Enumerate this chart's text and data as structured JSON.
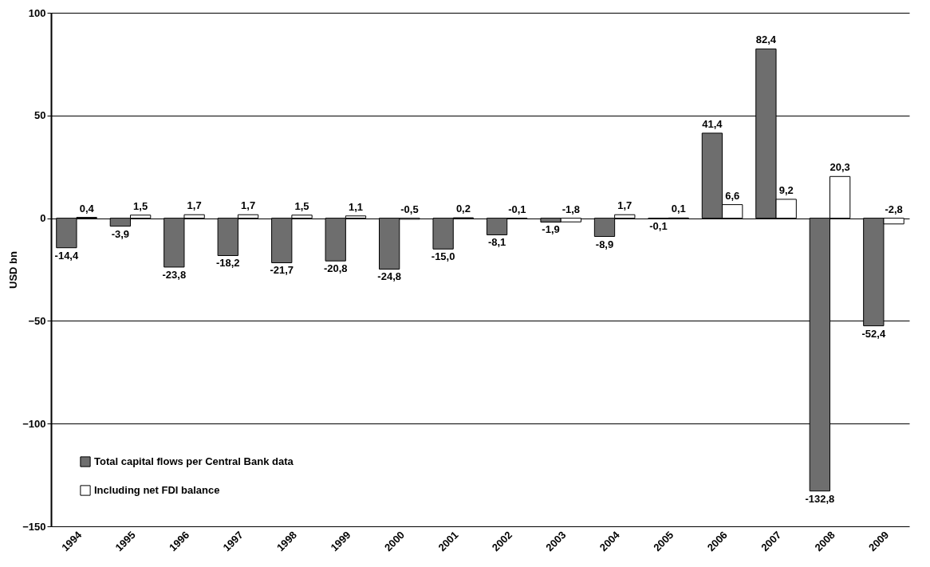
{
  "chart_data": {
    "type": "bar",
    "ylabel": "USD bn",
    "categories": [
      "1994",
      "1995",
      "1996",
      "1997",
      "1998",
      "1999",
      "2000",
      "2001",
      "2002",
      "2003",
      "2004",
      "2005",
      "2006",
      "2007",
      "2008",
      "2009"
    ],
    "series": [
      {
        "name": "Total capital flows per Central Bank data",
        "color": "#6e6e6e",
        "values": [
          -14.4,
          -3.9,
          -23.8,
          -18.2,
          -21.7,
          -20.8,
          -24.8,
          -15.0,
          -8.1,
          -1.9,
          -8.9,
          -0.1,
          41.4,
          82.4,
          -132.8,
          -52.4
        ],
        "value_labels": [
          "-14,4",
          "-3,9",
          "-23,8",
          "-18,2",
          "-21,7",
          "-20,8",
          "-24,8",
          "-15,0",
          "-8,1",
          "-1,9",
          "-8,9",
          "-0,1",
          "41,4",
          "82,4",
          "-132,8",
          "-52,4"
        ]
      },
      {
        "name": "Including net FDI balance",
        "color": "#ffffff",
        "values": [
          0.4,
          1.5,
          1.7,
          1.7,
          1.5,
          1.1,
          -0.5,
          0.2,
          -0.1,
          -1.8,
          1.7,
          0.1,
          6.6,
          9.2,
          20.3,
          -2.8
        ],
        "value_labels": [
          "0,4",
          "1,5",
          "1,7",
          "1,7",
          "1,5",
          "1,1",
          "-0,5",
          "0,2",
          "-0,1",
          "-1,8",
          "1,7",
          "0,1",
          "6,6",
          "9,2",
          "20,3",
          "-2,8"
        ]
      }
    ],
    "ylim": [
      -150,
      100
    ],
    "yticks": [
      -150,
      -100,
      -50,
      0,
      50,
      100
    ],
    "grid": "y",
    "legend": "bottom left"
  }
}
